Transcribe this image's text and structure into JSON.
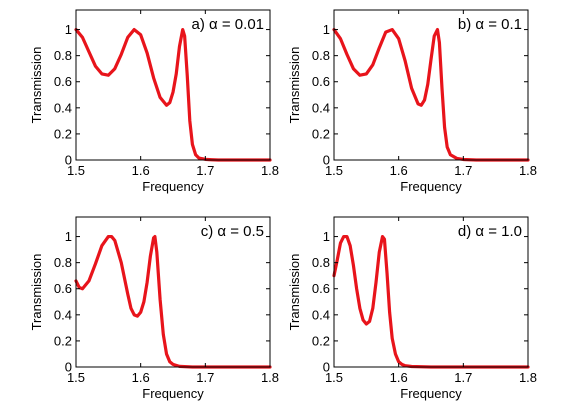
{
  "colors": {
    "curve": "#e8141b",
    "axis": "#000000",
    "background": "#ffffff"
  },
  "chart_data": [
    {
      "type": "line",
      "title": "a) α = 0.01",
      "xlabel": "Frequency",
      "ylabel": "Transmission",
      "xlim": [
        1.5,
        1.8
      ],
      "ylim": [
        0,
        1.15
      ],
      "xticks": [
        "1.5",
        "1.6",
        "1.7",
        "1.8"
      ],
      "yticks": [
        "0",
        "0.2",
        "0.4",
        "0.6",
        "0.8",
        "1"
      ],
      "grid": false,
      "series": [
        {
          "color": "#e8141b",
          "x": [
            1.5,
            1.51,
            1.52,
            1.53,
            1.54,
            1.55,
            1.56,
            1.57,
            1.58,
            1.59,
            1.6,
            1.61,
            1.62,
            1.63,
            1.64,
            1.645,
            1.65,
            1.655,
            1.66,
            1.665,
            1.668,
            1.672,
            1.676,
            1.68,
            1.685,
            1.69,
            1.7,
            1.71,
            1.72,
            1.75,
            1.8
          ],
          "y": [
            1.0,
            0.94,
            0.83,
            0.72,
            0.66,
            0.65,
            0.7,
            0.81,
            0.94,
            1.0,
            0.96,
            0.82,
            0.63,
            0.48,
            0.42,
            0.44,
            0.52,
            0.66,
            0.87,
            1.0,
            0.95,
            0.65,
            0.3,
            0.12,
            0.04,
            0.015,
            0.005,
            0.002,
            0.0,
            0.0,
            0.0
          ]
        }
      ]
    },
    {
      "type": "line",
      "title": "b) α = 0.1",
      "xlabel": "Frequency",
      "ylabel": "Transmission",
      "xlim": [
        1.5,
        1.8
      ],
      "ylim": [
        0,
        1.15
      ],
      "xticks": [
        "1.5",
        "1.6",
        "1.7",
        "1.8"
      ],
      "yticks": [
        "0",
        "0.2",
        "0.4",
        "0.6",
        "0.8",
        "1"
      ],
      "grid": false,
      "series": [
        {
          "color": "#e8141b",
          "x": [
            1.5,
            1.51,
            1.52,
            1.53,
            1.54,
            1.55,
            1.56,
            1.57,
            1.58,
            1.59,
            1.6,
            1.61,
            1.62,
            1.63,
            1.635,
            1.64,
            1.645,
            1.65,
            1.655,
            1.66,
            1.663,
            1.667,
            1.671,
            1.675,
            1.68,
            1.69,
            1.7,
            1.72,
            1.75,
            1.8
          ],
          "y": [
            1.0,
            0.93,
            0.81,
            0.7,
            0.65,
            0.66,
            0.73,
            0.86,
            0.98,
            1.0,
            0.93,
            0.76,
            0.55,
            0.43,
            0.42,
            0.46,
            0.58,
            0.77,
            0.95,
            1.0,
            0.9,
            0.55,
            0.25,
            0.1,
            0.04,
            0.012,
            0.004,
            0.0,
            0.0,
            0.0
          ]
        }
      ]
    },
    {
      "type": "line",
      "title": "c) α = 0.5",
      "xlabel": "Frequency",
      "ylabel": "Transmission",
      "xlim": [
        1.5,
        1.8
      ],
      "ylim": [
        0,
        1.15
      ],
      "xticks": [
        "1.5",
        "1.6",
        "1.7",
        "1.8"
      ],
      "yticks": [
        "0",
        "0.2",
        "0.4",
        "0.6",
        "0.8",
        "1"
      ],
      "grid": false,
      "series": [
        {
          "color": "#e8141b",
          "x": [
            1.5,
            1.505,
            1.51,
            1.52,
            1.53,
            1.54,
            1.55,
            1.555,
            1.56,
            1.57,
            1.58,
            1.585,
            1.59,
            1.595,
            1.6,
            1.605,
            1.61,
            1.615,
            1.62,
            1.622,
            1.625,
            1.63,
            1.635,
            1.64,
            1.645,
            1.65,
            1.66,
            1.68,
            1.7,
            1.8
          ],
          "y": [
            0.66,
            0.61,
            0.6,
            0.66,
            0.79,
            0.93,
            1.0,
            1.0,
            0.97,
            0.8,
            0.56,
            0.45,
            0.4,
            0.39,
            0.42,
            0.5,
            0.65,
            0.85,
            0.99,
            1.0,
            0.88,
            0.52,
            0.25,
            0.1,
            0.04,
            0.02,
            0.005,
            0.0,
            0.0,
            0.0
          ]
        }
      ]
    },
    {
      "type": "line",
      "title": "d) α = 1.0",
      "xlabel": "Frequency",
      "ylabel": "Transmission",
      "xlim": [
        1.5,
        1.8
      ],
      "ylim": [
        0,
        1.15
      ],
      "xticks": [
        "1.5",
        "1.6",
        "1.7",
        "1.8"
      ],
      "yticks": [
        "0",
        "0.2",
        "0.4",
        "0.6",
        "0.8",
        "1"
      ],
      "grid": false,
      "series": [
        {
          "color": "#e8141b",
          "x": [
            1.5,
            1.505,
            1.51,
            1.515,
            1.52,
            1.525,
            1.53,
            1.535,
            1.54,
            1.545,
            1.55,
            1.555,
            1.56,
            1.565,
            1.57,
            1.575,
            1.578,
            1.582,
            1.586,
            1.59,
            1.595,
            1.6,
            1.605,
            1.61,
            1.62,
            1.65,
            1.7,
            1.8
          ],
          "y": [
            0.7,
            0.82,
            0.95,
            1.0,
            1.0,
            0.93,
            0.78,
            0.6,
            0.45,
            0.36,
            0.33,
            0.35,
            0.45,
            0.65,
            0.88,
            1.0,
            0.98,
            0.72,
            0.42,
            0.22,
            0.1,
            0.04,
            0.02,
            0.01,
            0.004,
            0.0,
            0.0,
            0.0
          ]
        }
      ]
    }
  ]
}
